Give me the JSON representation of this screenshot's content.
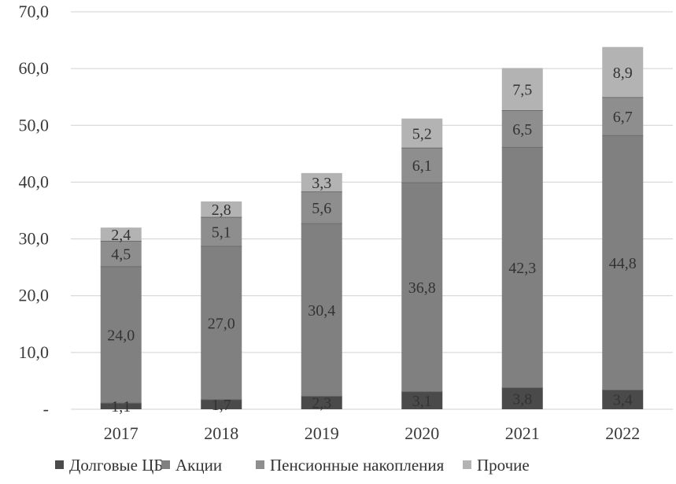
{
  "chart_data": {
    "type": "bar",
    "stacked": true,
    "categories": [
      "2017",
      "2018",
      "2019",
      "2020",
      "2021",
      "2022"
    ],
    "series": [
      {
        "name": "Долговые ЦБ",
        "color": "#4a4a4a",
        "values": [
          1.1,
          1.7,
          2.3,
          3.1,
          3.8,
          3.4
        ],
        "value_labels": [
          "1,1",
          "1,7",
          "2,3",
          "3,1",
          "3,8",
          "3,4"
        ]
      },
      {
        "name": "Акции",
        "color": "#808080",
        "values": [
          24.0,
          27.0,
          30.4,
          36.8,
          42.3,
          44.8
        ],
        "value_labels": [
          "24,0",
          "27,0",
          "30,4",
          "36,8",
          "42,3",
          "44,8"
        ]
      },
      {
        "name": "Пенсионные накопления",
        "color": "#8e8e8e",
        "values": [
          4.5,
          5.1,
          5.6,
          6.1,
          6.5,
          6.7
        ],
        "value_labels": [
          "4,5",
          "5,1",
          "5,6",
          "6,1",
          "6,5",
          "6,7"
        ]
      },
      {
        "name": "Прочие",
        "color": "#b3b3b3",
        "values": [
          2.4,
          2.8,
          3.3,
          5.2,
          7.5,
          8.9
        ],
        "value_labels": [
          "2,4",
          "2,8",
          "3,3",
          "5,2",
          "7,5",
          "8,9"
        ]
      }
    ],
    "y_ticks": [
      0,
      10,
      20,
      30,
      40,
      50,
      60,
      70
    ],
    "y_tick_labels": [
      "-",
      "10,0",
      "20,0",
      "30,0",
      "40,0",
      "50,0",
      "60,0",
      "70,0"
    ],
    "ylim": [
      0,
      70
    ],
    "title": "",
    "xlabel": "",
    "ylabel": "",
    "grid": true,
    "legend_position": "bottom"
  }
}
